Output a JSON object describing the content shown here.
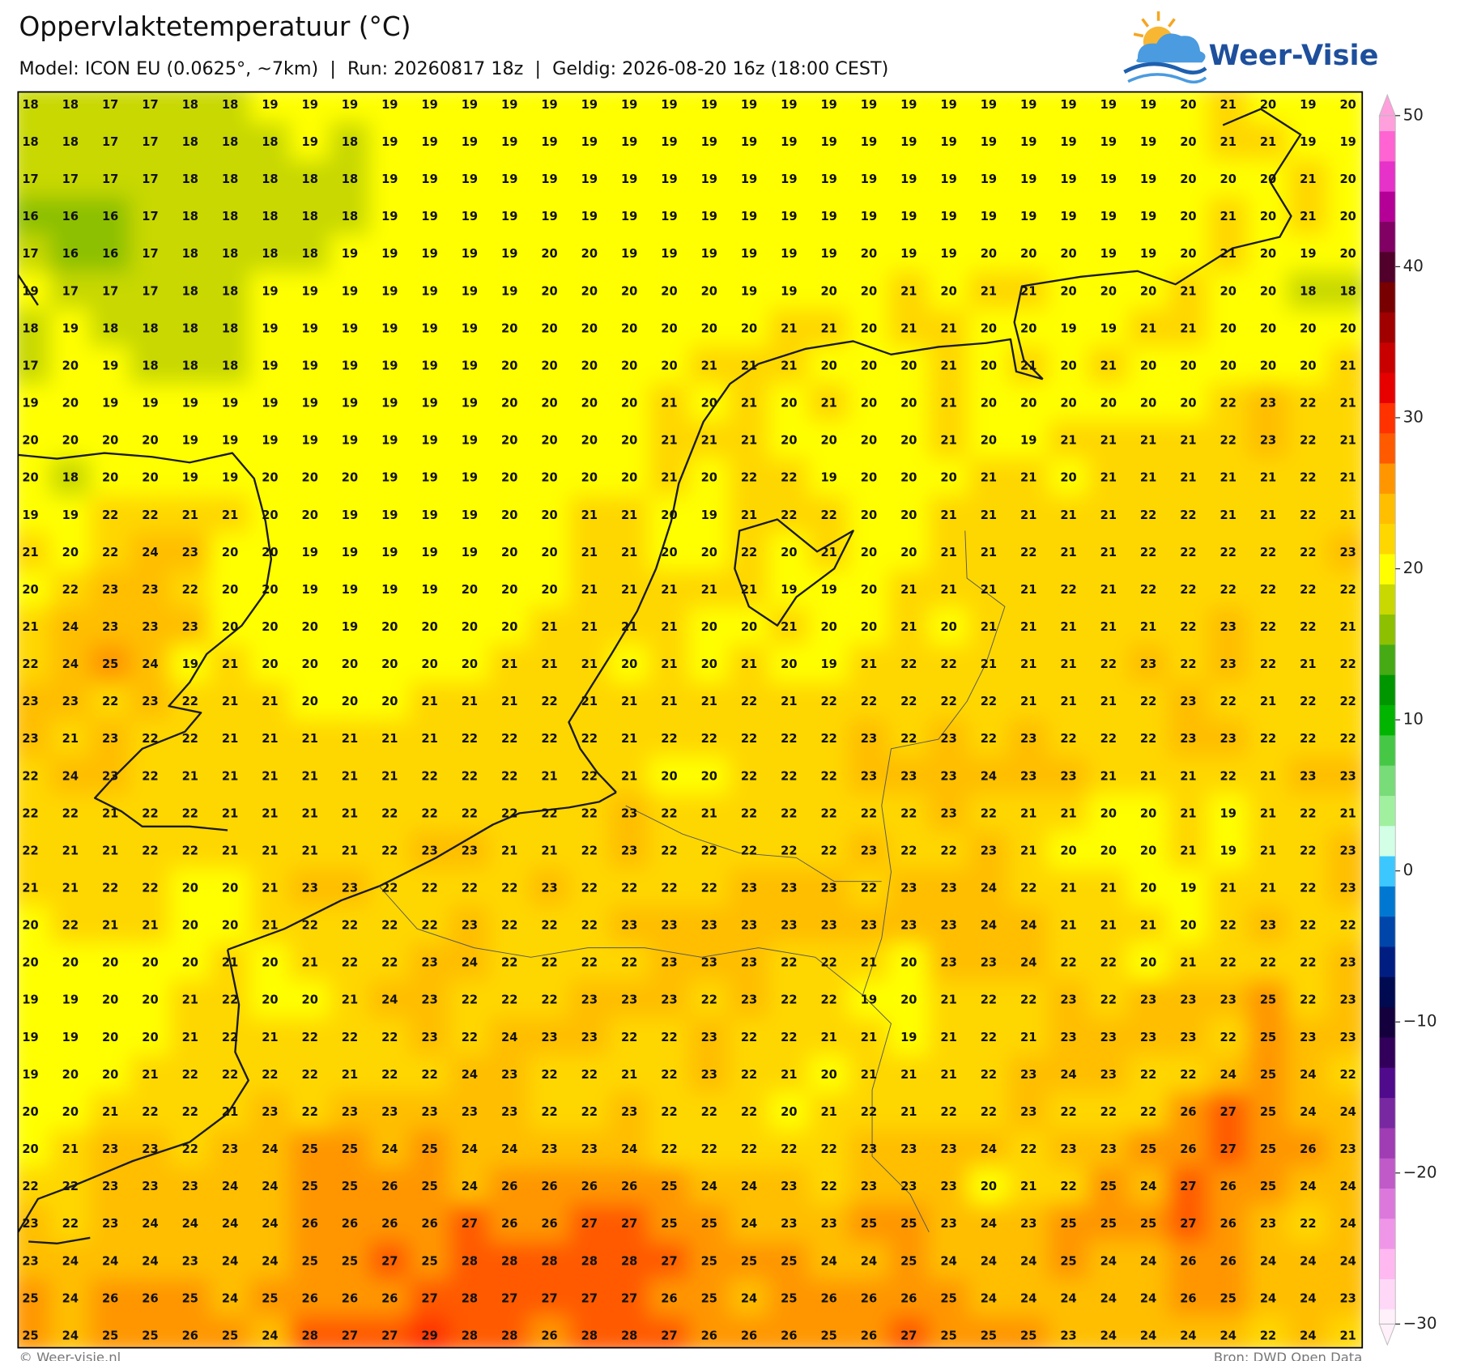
{
  "header": {
    "title": "Oppervlaktetemperatuur (°C)",
    "subtitle": "Model: ICON EU (0.0625°, ~7km)  |  Run: 20260817 18z  |  Geldig: 2026-08-20 16z (18:00 CEST)"
  },
  "logo": "Weer-Visie",
  "map": {
    "values": [
      [
        18,
        18,
        17,
        17,
        18,
        18,
        19,
        19,
        19,
        19,
        19,
        19,
        19,
        19,
        19,
        19,
        19,
        19,
        19,
        19,
        19,
        19,
        19,
        19,
        19,
        19,
        19,
        19,
        19,
        20,
        21,
        20,
        19,
        20
      ],
      [
        18,
        18,
        17,
        17,
        18,
        18,
        18,
        19,
        18,
        19,
        19,
        19,
        19,
        19,
        19,
        19,
        19,
        19,
        19,
        19,
        19,
        19,
        19,
        19,
        19,
        19,
        19,
        19,
        19,
        20,
        21,
        21,
        19,
        19
      ],
      [
        17,
        17,
        17,
        17,
        18,
        18,
        18,
        18,
        18,
        19,
        19,
        19,
        19,
        19,
        19,
        19,
        19,
        19,
        19,
        19,
        19,
        19,
        19,
        19,
        19,
        19,
        19,
        19,
        19,
        20,
        20,
        20,
        21,
        20
      ],
      [
        16,
        16,
        16,
        17,
        18,
        18,
        18,
        18,
        18,
        19,
        19,
        19,
        19,
        19,
        19,
        19,
        19,
        19,
        19,
        19,
        19,
        19,
        19,
        19,
        19,
        19,
        19,
        19,
        19,
        20,
        21,
        20,
        21,
        20
      ],
      [
        17,
        16,
        16,
        17,
        18,
        18,
        18,
        18,
        19,
        19,
        19,
        19,
        19,
        20,
        20,
        19,
        19,
        19,
        19,
        19,
        19,
        20,
        19,
        19,
        20,
        20,
        20,
        19,
        19,
        20,
        21,
        20,
        19,
        20
      ],
      [
        19,
        17,
        17,
        17,
        18,
        18,
        19,
        19,
        19,
        19,
        19,
        19,
        19,
        20,
        20,
        20,
        20,
        20,
        19,
        19,
        20,
        20,
        21,
        20,
        21,
        21,
        20,
        20,
        20,
        21,
        20,
        20,
        18,
        18
      ],
      [
        18,
        19,
        18,
        18,
        18,
        18,
        19,
        19,
        19,
        19,
        19,
        19,
        20,
        20,
        20,
        20,
        20,
        20,
        20,
        21,
        21,
        20,
        21,
        21,
        20,
        20,
        19,
        19,
        21,
        21,
        20,
        20,
        20,
        20
      ],
      [
        17,
        20,
        19,
        18,
        18,
        18,
        19,
        19,
        19,
        19,
        19,
        19,
        20,
        20,
        20,
        20,
        20,
        21,
        21,
        21,
        20,
        20,
        20,
        21,
        20,
        21,
        20,
        21,
        20,
        20,
        20,
        20,
        20,
        21
      ],
      [
        19,
        20,
        19,
        19,
        19,
        19,
        19,
        19,
        19,
        19,
        19,
        19,
        20,
        20,
        20,
        20,
        21,
        20,
        21,
        20,
        21,
        20,
        20,
        21,
        20,
        20,
        20,
        20,
        20,
        20,
        22,
        23,
        22,
        21
      ],
      [
        20,
        20,
        20,
        20,
        19,
        19,
        19,
        19,
        19,
        19,
        19,
        19,
        20,
        20,
        20,
        20,
        21,
        21,
        21,
        20,
        20,
        20,
        20,
        21,
        20,
        19,
        21,
        21,
        21,
        21,
        22,
        23,
        22,
        21
      ],
      [
        20,
        18,
        20,
        20,
        19,
        19,
        20,
        20,
        20,
        19,
        19,
        19,
        20,
        20,
        20,
        20,
        21,
        20,
        22,
        22,
        19,
        20,
        20,
        20,
        21,
        21,
        20,
        21,
        21,
        21,
        21,
        21,
        22,
        21
      ],
      [
        19,
        19,
        22,
        22,
        21,
        21,
        20,
        20,
        19,
        19,
        19,
        19,
        20,
        20,
        21,
        21,
        20,
        19,
        21,
        22,
        22,
        20,
        20,
        21,
        21,
        21,
        21,
        21,
        22,
        22,
        21,
        21,
        22,
        21
      ],
      [
        21,
        20,
        22,
        24,
        23,
        20,
        20,
        19,
        19,
        19,
        19,
        19,
        20,
        20,
        21,
        21,
        20,
        20,
        22,
        20,
        21,
        20,
        20,
        21,
        21,
        22,
        21,
        21,
        22,
        22,
        22,
        22,
        22,
        23
      ],
      [
        20,
        22,
        23,
        23,
        22,
        20,
        20,
        19,
        19,
        19,
        19,
        20,
        20,
        20,
        21,
        21,
        21,
        21,
        21,
        19,
        19,
        20,
        21,
        21,
        21,
        21,
        22,
        21,
        22,
        22,
        22,
        22,
        22,
        22
      ],
      [
        21,
        24,
        23,
        23,
        23,
        20,
        20,
        20,
        19,
        20,
        20,
        20,
        20,
        21,
        21,
        21,
        21,
        20,
        20,
        21,
        20,
        20,
        21,
        20,
        21,
        21,
        21,
        21,
        21,
        22,
        23,
        22,
        22,
        21
      ],
      [
        22,
        24,
        25,
        24,
        19,
        21,
        20,
        20,
        20,
        20,
        20,
        20,
        21,
        21,
        21,
        20,
        21,
        20,
        21,
        20,
        19,
        21,
        22,
        22,
        21,
        21,
        21,
        22,
        23,
        22,
        23,
        22,
        21,
        22
      ],
      [
        23,
        23,
        22,
        23,
        22,
        21,
        21,
        20,
        20,
        20,
        21,
        21,
        21,
        22,
        21,
        21,
        21,
        21,
        22,
        21,
        22,
        22,
        22,
        22,
        22,
        21,
        21,
        21,
        22,
        23,
        22,
        21,
        22,
        22
      ],
      [
        23,
        21,
        23,
        22,
        22,
        21,
        21,
        21,
        21,
        21,
        21,
        22,
        22,
        22,
        22,
        21,
        22,
        22,
        22,
        22,
        22,
        23,
        22,
        23,
        22,
        23,
        22,
        22,
        22,
        23,
        23,
        22,
        22,
        22
      ],
      [
        22,
        24,
        23,
        22,
        21,
        21,
        21,
        21,
        21,
        21,
        22,
        22,
        22,
        21,
        22,
        21,
        20,
        20,
        22,
        22,
        22,
        23,
        23,
        23,
        24,
        23,
        23,
        21,
        21,
        21,
        22,
        21,
        23,
        23
      ],
      [
        22,
        22,
        21,
        22,
        22,
        21,
        21,
        21,
        21,
        22,
        22,
        22,
        22,
        22,
        22,
        23,
        22,
        21,
        22,
        22,
        22,
        22,
        22,
        23,
        22,
        21,
        21,
        20,
        20,
        21,
        19,
        21,
        22,
        21
      ],
      [
        22,
        21,
        21,
        22,
        22,
        21,
        21,
        21,
        21,
        22,
        23,
        23,
        21,
        21,
        22,
        23,
        22,
        22,
        22,
        22,
        22,
        23,
        22,
        22,
        23,
        21,
        20,
        20,
        20,
        21,
        19,
        21,
        22,
        23
      ],
      [
        21,
        21,
        22,
        22,
        20,
        20,
        21,
        23,
        23,
        22,
        22,
        22,
        22,
        23,
        22,
        22,
        22,
        22,
        23,
        23,
        23,
        22,
        23,
        23,
        24,
        22,
        21,
        21,
        20,
        19,
        21,
        21,
        22,
        23
      ],
      [
        20,
        22,
        21,
        21,
        20,
        20,
        21,
        22,
        22,
        22,
        22,
        23,
        22,
        22,
        22,
        23,
        23,
        23,
        23,
        23,
        23,
        23,
        23,
        23,
        24,
        24,
        21,
        21,
        21,
        20,
        22,
        23,
        22,
        22
      ],
      [
        20,
        20,
        20,
        20,
        20,
        21,
        20,
        21,
        22,
        22,
        23,
        24,
        22,
        22,
        22,
        22,
        23,
        23,
        23,
        22,
        22,
        21,
        20,
        23,
        23,
        24,
        22,
        22,
        20,
        21,
        22,
        22,
        22,
        23
      ],
      [
        19,
        19,
        20,
        20,
        21,
        22,
        20,
        20,
        21,
        24,
        23,
        22,
        22,
        22,
        23,
        23,
        23,
        22,
        23,
        22,
        22,
        19,
        20,
        21,
        22,
        22,
        23,
        22,
        23,
        23,
        23,
        25,
        22,
        23
      ],
      [
        19,
        19,
        20,
        20,
        21,
        22,
        21,
        22,
        22,
        22,
        23,
        22,
        24,
        23,
        23,
        22,
        22,
        23,
        22,
        22,
        21,
        21,
        19,
        21,
        22,
        21,
        23,
        23,
        23,
        23,
        22,
        25,
        23,
        23
      ],
      [
        19,
        20,
        20,
        21,
        22,
        22,
        22,
        22,
        21,
        22,
        22,
        24,
        23,
        22,
        22,
        21,
        22,
        23,
        22,
        21,
        20,
        21,
        21,
        21,
        22,
        23,
        24,
        23,
        22,
        22,
        24,
        25,
        24,
        22
      ],
      [
        20,
        20,
        21,
        22,
        22,
        21,
        23,
        22,
        23,
        23,
        23,
        23,
        23,
        22,
        22,
        23,
        22,
        22,
        22,
        20,
        21,
        22,
        21,
        22,
        22,
        23,
        22,
        22,
        22,
        26,
        27,
        25,
        24,
        24
      ],
      [
        20,
        21,
        23,
        23,
        22,
        23,
        24,
        25,
        25,
        24,
        25,
        24,
        24,
        23,
        23,
        24,
        22,
        22,
        22,
        22,
        22,
        23,
        23,
        23,
        24,
        22,
        23,
        23,
        25,
        26,
        27,
        25,
        26,
        23
      ],
      [
        22,
        22,
        23,
        23,
        23,
        24,
        24,
        25,
        25,
        26,
        25,
        24,
        26,
        26,
        26,
        26,
        25,
        24,
        24,
        23,
        22,
        23,
        23,
        23,
        20,
        21,
        22,
        25,
        24,
        27,
        26,
        25,
        24,
        24
      ],
      [
        23,
        22,
        23,
        24,
        24,
        24,
        24,
        26,
        26,
        26,
        26,
        27,
        26,
        26,
        27,
        27,
        25,
        25,
        24,
        23,
        23,
        25,
        25,
        23,
        24,
        23,
        25,
        25,
        25,
        27,
        26,
        23,
        22,
        24
      ],
      [
        23,
        24,
        24,
        24,
        23,
        24,
        24,
        25,
        25,
        27,
        25,
        28,
        28,
        28,
        28,
        28,
        27,
        25,
        25,
        25,
        24,
        24,
        25,
        24,
        24,
        24,
        25,
        24,
        24,
        26,
        26,
        24,
        24,
        24
      ],
      [
        25,
        24,
        26,
        26,
        25,
        24,
        25,
        26,
        26,
        26,
        27,
        28,
        27,
        27,
        27,
        27,
        26,
        25,
        24,
        25,
        26,
        26,
        26,
        25,
        24,
        24,
        24,
        24,
        24,
        26,
        25,
        24,
        24,
        23
      ],
      [
        25,
        24,
        25,
        25,
        26,
        25,
        24,
        28,
        27,
        27,
        29,
        28,
        28,
        26,
        28,
        28,
        27,
        26,
        26,
        26,
        25,
        26,
        27,
        25,
        25,
        25,
        23,
        24,
        24,
        24,
        24,
        22,
        24,
        21
      ]
    ]
  },
  "colorbar": {
    "lim": [
      -30,
      50
    ],
    "ticks": [
      50,
      40,
      30,
      20,
      10,
      0,
      {
        "value": -10,
        "label": "−10"
      },
      {
        "value": -20,
        "label": "−20"
      },
      {
        "value": -30,
        "label": "−30"
      }
    ],
    "colors": [
      "#fff0fa",
      "#ffd8f8",
      "#ffb8f0",
      "#f096e8",
      "#dc78dc",
      "#c05ac8",
      "#a03cb4",
      "#7828a0",
      "#500a8c",
      "#32005a",
      "#14003c",
      "#000a50",
      "#001e82",
      "#0046aa",
      "#0078d2",
      "#3cc8ff",
      "#d2ffe6",
      "#a0f0a0",
      "#78dc78",
      "#46c846",
      "#00b400",
      "#009600",
      "#46aa14",
      "#8cc000",
      "#c8d800",
      "#ffff00",
      "#ffd700",
      "#ffbe00",
      "#ff9600",
      "#ff5a00",
      "#ff3200",
      "#e60000",
      "#c80000",
      "#a00000",
      "#780000",
      "#50002a",
      "#800064",
      "#b40096",
      "#e632c8",
      "#ff64d2",
      "#ffa0dc"
    ]
  },
  "footer": {
    "copyright": "© Weer-visie.nl",
    "source": "Bron: DWD Open Data"
  }
}
